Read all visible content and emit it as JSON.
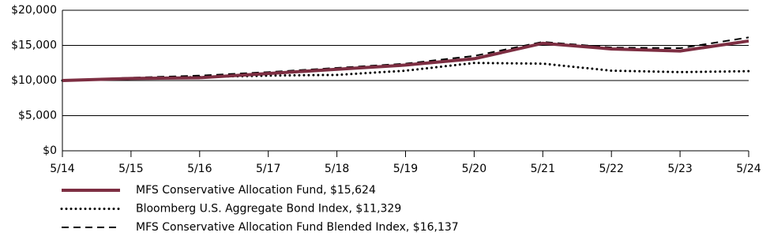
{
  "chart_data": {
    "type": "line",
    "categories": [
      "5/14",
      "5/15",
      "5/16",
      "5/17",
      "5/18",
      "5/19",
      "5/20",
      "5/21",
      "5/22",
      "5/23",
      "5/24"
    ],
    "series": [
      {
        "name": "MFS Conservative Allocation Fund, $15,624",
        "color": "#7d2e42",
        "style": "solid",
        "values": [
          10000,
          10300,
          10400,
          11000,
          11600,
          12200,
          13100,
          15300,
          14500,
          14200,
          15624
        ]
      },
      {
        "name": "Bloomberg U.S. Aggregate Bond Index, $11,329",
        "color": "#000000",
        "style": "dotted",
        "values": [
          10000,
          10300,
          10500,
          10700,
          10800,
          11400,
          12500,
          12400,
          11400,
          11200,
          11329
        ]
      },
      {
        "name": "MFS Conservative Allocation Fund Blended Index, $16,137",
        "color": "#000000",
        "style": "dashed",
        "values": [
          10000,
          10400,
          10700,
          11200,
          11800,
          12400,
          13500,
          15500,
          14700,
          14600,
          16137
        ]
      }
    ],
    "ylim": [
      0,
      20000
    ],
    "yticks": [
      {
        "value": 0,
        "label": "$0"
      },
      {
        "value": 5000,
        "label": "$5,000"
      },
      {
        "value": 10000,
        "label": "$10,000"
      },
      {
        "value": 15000,
        "label": "$15,000"
      },
      {
        "value": 20000,
        "label": "$20,000"
      }
    ],
    "grid": true
  }
}
